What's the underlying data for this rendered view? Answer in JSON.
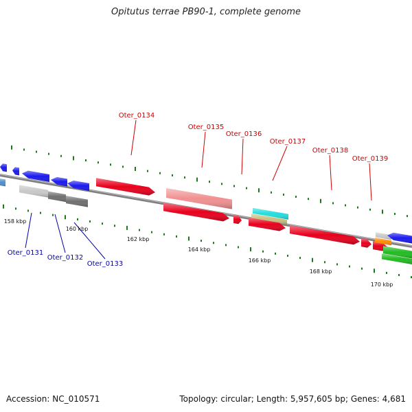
{
  "title": "Opitutus terrae PB90-1, complete genome",
  "footer": {
    "accession": "Accession: NC_010571",
    "stats": "Topology: circular; Length: 5,957,605 bp; Genes: 4,681"
  },
  "colors": {
    "backbone": "#808080",
    "label_forward": "#cc0000",
    "label_reverse": "#0000aa",
    "tick": "#1a7a1a",
    "gene_red": "#e8001c",
    "gene_blue": "#1a1aee",
    "gene_pink": "#f09090",
    "gene_gray_light": "#c8c8c8",
    "gene_gray_dark": "#707070",
    "gene_cyan": "#22dddd",
    "gene_khaki": "#c8c080",
    "gene_orange": "#ff8c00",
    "gene_green": "#22bb22",
    "gene_steel": "#4f8fcf"
  },
  "kbp_ticks": [
    "158 kbp",
    "160 kbp",
    "162 kbp",
    "164 kbp",
    "166 kbp",
    "168 kbp",
    "170 kbp"
  ],
  "gene_labels": {
    "forward": [
      "Oter_0134",
      "Oter_0135",
      "Oter_0136",
      "Oter_0137",
      "Oter_0138",
      "Oter_0139"
    ],
    "reverse": [
      "Oter_0131",
      "Oter_0132",
      "Oter_0133"
    ]
  }
}
